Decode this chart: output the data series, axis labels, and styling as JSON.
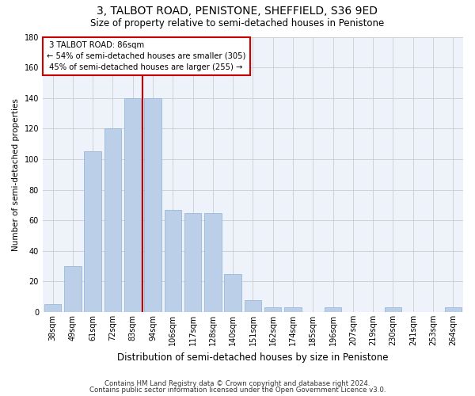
{
  "title": "3, TALBOT ROAD, PENISTONE, SHEFFIELD, S36 9ED",
  "subtitle": "Size of property relative to semi-detached houses in Penistone",
  "xlabel": "Distribution of semi-detached houses by size in Penistone",
  "ylabel": "Number of semi-detached properties",
  "categories": [
    "38sqm",
    "49sqm",
    "61sqm",
    "72sqm",
    "83sqm",
    "94sqm",
    "106sqm",
    "117sqm",
    "128sqm",
    "140sqm",
    "151sqm",
    "162sqm",
    "174sqm",
    "185sqm",
    "196sqm",
    "207sqm",
    "219sqm",
    "230sqm",
    "241sqm",
    "253sqm",
    "264sqm"
  ],
  "values": [
    5,
    30,
    105,
    120,
    140,
    140,
    67,
    65,
    65,
    25,
    8,
    3,
    3,
    0,
    3,
    0,
    0,
    3,
    0,
    0,
    3
  ],
  "bar_color": "#BBCFE8",
  "bar_edge_color": "#9ab8d8",
  "property_label": "3 TALBOT ROAD: 86sqm",
  "pct_smaller": 54,
  "count_smaller": 305,
  "pct_larger": 45,
  "count_larger": 255,
  "ylim": [
    0,
    180
  ],
  "yticks": [
    0,
    20,
    40,
    60,
    80,
    100,
    120,
    140,
    160,
    180
  ],
  "annotation_box_color": "#ffffff",
  "annotation_box_edge": "#cc0000",
  "vline_color": "#cc0000",
  "background_color": "#eef2fa",
  "grid_color": "#cccccc",
  "title_fontsize": 10,
  "subtitle_fontsize": 8.5,
  "ylabel_fontsize": 7.5,
  "xlabel_fontsize": 8.5,
  "tick_fontsize": 7,
  "footer1": "Contains HM Land Registry data © Crown copyright and database right 2024.",
  "footer2": "Contains public sector information licensed under the Open Government Licence v3.0."
}
